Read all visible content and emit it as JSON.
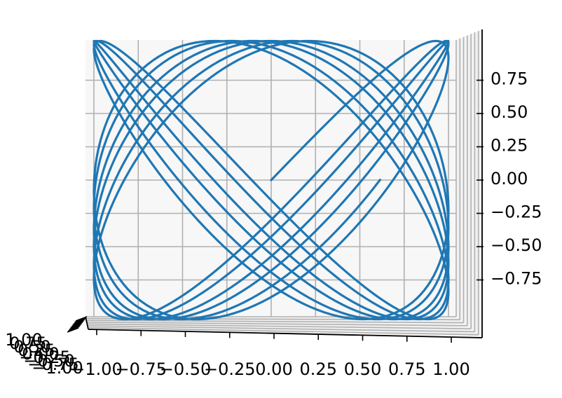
{
  "chart_data": {
    "type": "line",
    "projection": "3d",
    "title": "",
    "xlabel": "",
    "ylabel": "",
    "zlabel": "",
    "xlim": [
      -1.0,
      1.0
    ],
    "zlim": [
      -0.95,
      0.95
    ],
    "x_ticks": [
      "−1.00",
      "−0.75",
      "−0.50",
      "−0.25",
      "0.00",
      "0.25",
      "0.50",
      "0.75",
      "1.00"
    ],
    "x_tick_values": [
      -1.0,
      -0.75,
      -0.5,
      -0.25,
      0.0,
      0.25,
      0.5,
      0.75,
      1.0
    ],
    "z_ticks": [
      "−0.75",
      "−0.50",
      "−0.25",
      "0.00",
      "0.25",
      "0.50",
      "0.75"
    ],
    "z_tick_values": [
      -0.75,
      -0.5,
      -0.25,
      0.0,
      0.25,
      0.5,
      0.75
    ],
    "y_ticks": [
      "−1.00",
      "−0.75",
      "−0.50",
      "−0.25",
      "0.00",
      "0.25",
      "0.50",
      "0.75",
      "1.00"
    ],
    "grid": true,
    "series": [
      {
        "color": "#1f77b4",
        "curve": "lissajous",
        "x": "sin(3t + 0.22·(t/2π))",
        "z": "sin(4t)",
        "t_range": [
          0,
          18.85
        ],
        "samples": 1400
      }
    ]
  }
}
